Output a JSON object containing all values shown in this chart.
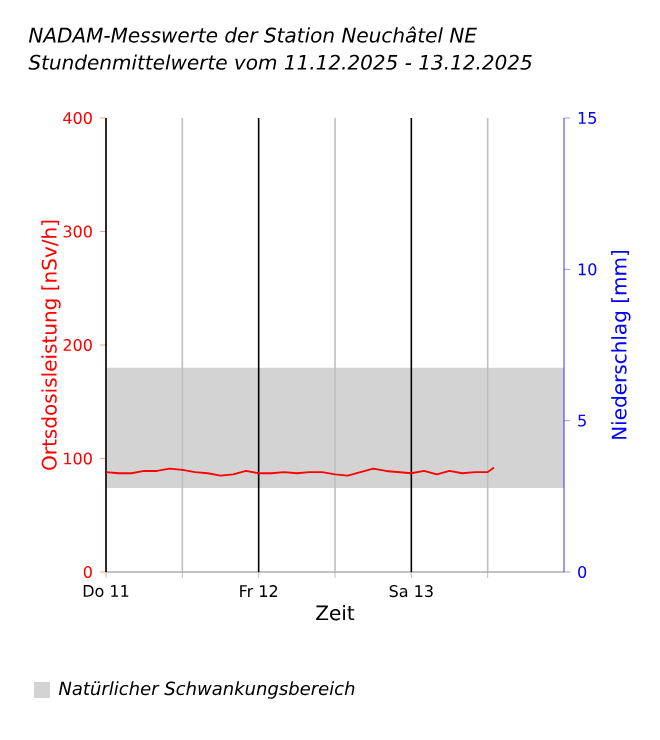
{
  "chart_data": {
    "type": "line",
    "title": "NADAM-Messwerte der Station Neuchâtel NE",
    "subtitle": "Stundenmittelwerte vom 11.12.2025 - 13.12.2025",
    "xlabel": "Zeit",
    "ylabel": "Ortsdosisleistung [nSv/h]",
    "y2label": "Niederschlag [mm]",
    "x": [
      "2025-12-11T00:00",
      "2025-12-11T02:00",
      "2025-12-11T04:00",
      "2025-12-11T06:00",
      "2025-12-11T08:00",
      "2025-12-11T10:00",
      "2025-12-11T12:00",
      "2025-12-11T14:00",
      "2025-12-11T16:00",
      "2025-12-11T18:00",
      "2025-12-11T20:00",
      "2025-12-11T22:00",
      "2025-12-12T00:00",
      "2025-12-12T02:00",
      "2025-12-12T04:00",
      "2025-12-12T06:00",
      "2025-12-12T08:00",
      "2025-12-12T10:00",
      "2025-12-12T12:00",
      "2025-12-12T14:00",
      "2025-12-12T16:00",
      "2025-12-12T18:00",
      "2025-12-12T20:00",
      "2025-12-12T22:00",
      "2025-12-13T00:00",
      "2025-12-13T02:00",
      "2025-12-13T04:00",
      "2025-12-13T06:00",
      "2025-12-13T08:00",
      "2025-12-13T10:00",
      "2025-12-13T12:00",
      "2025-12-13T13:00"
    ],
    "series": [
      {
        "color": "#ff0000",
        "values": [
          88,
          87,
          87,
          89,
          89,
          91,
          90,
          88,
          87,
          85,
          86,
          89,
          87,
          87,
          88,
          87,
          88,
          88,
          86,
          85,
          88,
          91,
          89,
          88,
          87,
          89,
          86,
          89,
          87,
          88,
          88,
          92
        ]
      }
    ],
    "xlim": [
      "2025-12-11T00:00",
      "2025-12-14T00:00"
    ],
    "xticks": [
      {
        "value": "2025-12-11T00:00",
        "label": "Do 11"
      },
      {
        "value": "2025-12-11T12:00",
        "label": null
      },
      {
        "value": "2025-12-12T00:00",
        "label": "Fr 12"
      },
      {
        "value": "2025-12-12T12:00",
        "label": null
      },
      {
        "value": "2025-12-13T00:00",
        "label": "Sa 13"
      },
      {
        "value": "2025-12-13T12:00",
        "label": null
      }
    ],
    "ylim": [
      0,
      400
    ],
    "yticks": [
      0,
      100,
      200,
      300,
      400
    ],
    "y2lim": [
      0,
      15
    ],
    "y2ticks": [
      0,
      5,
      10,
      15
    ],
    "bands": [
      {
        "axis": "y",
        "from": 74,
        "to": 180,
        "label": "Natürlicher Schwankungsbereich",
        "color": "#d3d3d3"
      }
    ],
    "grid": "x",
    "legend": "bottom left"
  }
}
